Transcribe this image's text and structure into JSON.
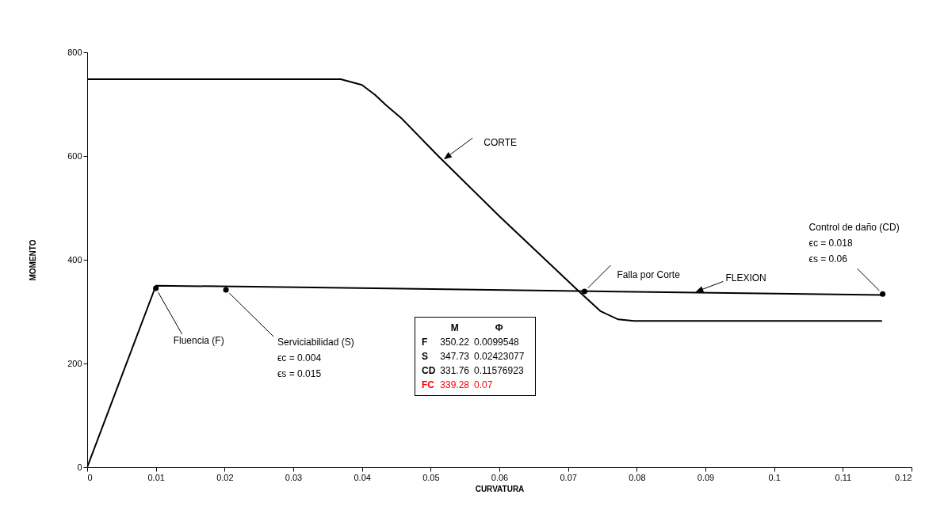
{
  "chart_data": {
    "type": "line",
    "xlabel": "CURVATURA",
    "ylabel": "MOMENTO",
    "xlim": [
      0,
      0.12
    ],
    "xticks": [
      0,
      0.01,
      0.02,
      0.03,
      0.04,
      0.05,
      0.06,
      0.07,
      0.08,
      0.09,
      0.1,
      0.11,
      0.12
    ],
    "ylim": [
      0,
      800
    ],
    "yticks": [
      0,
      200,
      400,
      600,
      800
    ],
    "grid": false,
    "series": [
      {
        "name": "FLEXION",
        "color": "#000000",
        "x": [
          0,
          0.01,
          0.0242,
          0.1158
        ],
        "values": [
          0,
          350,
          348,
          332
        ]
      },
      {
        "name": "CORTE",
        "color": "#000000",
        "x": [
          0,
          0.0369,
          0.04,
          0.0419,
          0.0435,
          0.0458,
          0.0511,
          0.06,
          0.0715,
          0.0747,
          0.0773,
          0.0796,
          0.1157
        ],
        "values": [
          748,
          748,
          737,
          718,
          698,
          672,
          600,
          484,
          340,
          301,
          285,
          282,
          282
        ]
      },
      {
        "type": "scatter",
        "marker": "circle",
        "color": "#000000",
        "x": [
          0.01,
          0.0202,
          0.0724,
          0.1158
        ],
        "values": [
          345,
          342,
          339,
          334
        ]
      }
    ],
    "annotations": [
      {
        "text": "Fluencia (F)",
        "x": 0.01,
        "y": 345
      },
      {
        "text": "Serviciabilidad (S)\nϵc = 0.004\nϵs = 0.015",
        "x": 0.0202,
        "y": 342
      },
      {
        "text": "Falla por Corte",
        "x": 0.0724,
        "y": 339
      },
      {
        "text": "Control de daño (CD)\nϵc = 0.018\nϵs = 0.06",
        "x": 0.1158,
        "y": 334
      },
      "M",
      "Φ",
      "F",
      "350.22",
      "0.0099548",
      "S",
      "347.73",
      "0.02423077",
      "CD",
      "331.76",
      "0.11576923",
      "FC",
      "339.28",
      "0.07"
    ]
  }
}
